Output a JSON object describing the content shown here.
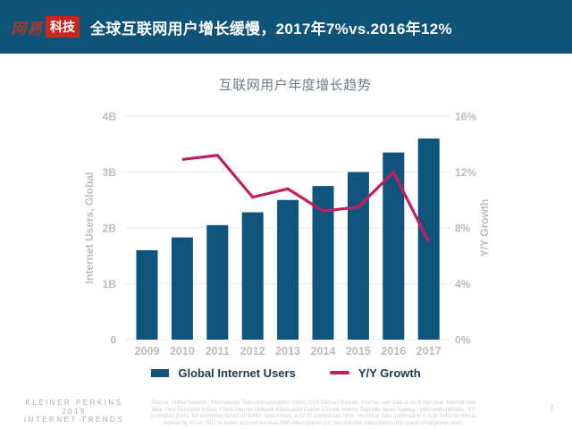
{
  "header": {
    "logo": {
      "brand": "网易",
      "sub": "科技"
    },
    "title": "全球互联网用户增长缓慢，2017年7%vs.2016年12%"
  },
  "chart": {
    "title": "互联网用户年度增长趋势"
  },
  "chart_data": {
    "type": "bar",
    "title": "互联网用户年度增长趋势",
    "categories": [
      "2009",
      "2010",
      "2011",
      "2012",
      "2013",
      "2014",
      "2015",
      "2016",
      "2017"
    ],
    "series": [
      {
        "name": "Global Internet Users",
        "type": "bar",
        "axis": "left",
        "color": "#0f547c",
        "values": [
          1.6,
          1.83,
          2.05,
          2.28,
          2.5,
          2.75,
          3.0,
          3.35,
          3.6
        ]
      },
      {
        "name": "Y/Y Growth",
        "type": "line",
        "axis": "right",
        "color": "#c41d5d",
        "values": [
          null,
          12.9,
          13.2,
          10.2,
          10.8,
          9.2,
          9.5,
          12.0,
          7.0
        ]
      }
    ],
    "left_axis": {
      "label": "Internet Users, Global",
      "min": 0,
      "max": 4,
      "ticks": [
        "0",
        "1B",
        "2B",
        "3B",
        "4B"
      ]
    },
    "right_axis": {
      "label": "Y/Y Growth",
      "min": 0,
      "max": 16,
      "ticks": [
        "0%",
        "4%",
        "8%",
        "12%",
        "16%"
      ]
    },
    "grid": true,
    "legend_position": "bottom"
  },
  "legend": {
    "items": [
      {
        "label": "Global Internet Users",
        "color": "#0f547c",
        "shape": "rect"
      },
      {
        "label": "Y/Y Growth",
        "color": "#c41d5d",
        "shape": "line"
      }
    ]
  },
  "footer": {
    "brand_lines": [
      "KLEINER PERKINS",
      "2018",
      "INTERNET TRENDS"
    ],
    "source_lines": [
      "Source: United Nations / International Telecommunications Union, USA Census Bureau. Internet user data is as of mid-year. Internet user",
      "data: Pew Research (USA), China Internet Network Information Center (China), Islamic Republic News Agency / InternetWorldStats / KP",
      "estimates (Iran), KP estimates based on IAMAI data (India), & APJII (Indonesia).  Note: Historical data (particularly in Sub-Saharan Africa)",
      "revised by ITU in 2017 to better account for dual-SIM subscriptions (i.e. two Internet subscriptions per single smartphone user)."
    ],
    "page_number": "7"
  },
  "colors": {
    "header_bg": "#0e5378",
    "bar": "#0f547c",
    "line": "#c41d5d",
    "grid": "#e9eaec",
    "axis_text": "#b9bdc2",
    "chart_title_text": "#6f7c88",
    "legend_text": "#1d3850",
    "logo_red": "#c5271f",
    "logo_brand_red": "#a13a30",
    "footer_text": "#a8acb0",
    "source_text": "#c8cbcf"
  }
}
